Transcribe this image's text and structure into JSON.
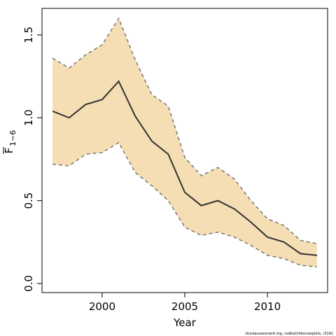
{
  "chart_data": {
    "type": "line",
    "x_label": "Year",
    "y_label": {
      "symbol": "F",
      "subscript": "1−6"
    },
    "footnote": "stockassessment.org, codkat14dscreeplots, r3191",
    "x": [
      1997,
      1998,
      1999,
      2000,
      2001,
      2002,
      2003,
      2004,
      2005,
      2006,
      2007,
      2008,
      2009,
      2010,
      2011,
      2012,
      2013
    ],
    "values": [
      1.04,
      1.0,
      1.08,
      1.11,
      1.22,
      1.01,
      0.86,
      0.78,
      0.55,
      0.47,
      0.5,
      0.45,
      0.37,
      0.28,
      0.25,
      0.18,
      0.17
    ],
    "upper": [
      1.36,
      1.3,
      1.38,
      1.44,
      1.6,
      1.35,
      1.14,
      1.07,
      0.76,
      0.65,
      0.7,
      0.63,
      0.5,
      0.39,
      0.35,
      0.26,
      0.24
    ],
    "lower": [
      0.72,
      0.71,
      0.78,
      0.79,
      0.85,
      0.67,
      0.59,
      0.5,
      0.34,
      0.29,
      0.31,
      0.28,
      0.23,
      0.17,
      0.15,
      0.11,
      0.1
    ],
    "color": "#333333",
    "band_color": "#f5deb3",
    "band_line_color": "#777777",
    "xlim": [
      1996.36,
      2013.64
    ],
    "ylim": [
      -0.055,
      1.66
    ],
    "xticks": [
      2000,
      2005,
      2010
    ],
    "yticks": [
      {
        "value": 0,
        "label": "0.0"
      },
      0.5,
      {
        "value": 1,
        "label": "1.0"
      },
      1.5
    ]
  }
}
